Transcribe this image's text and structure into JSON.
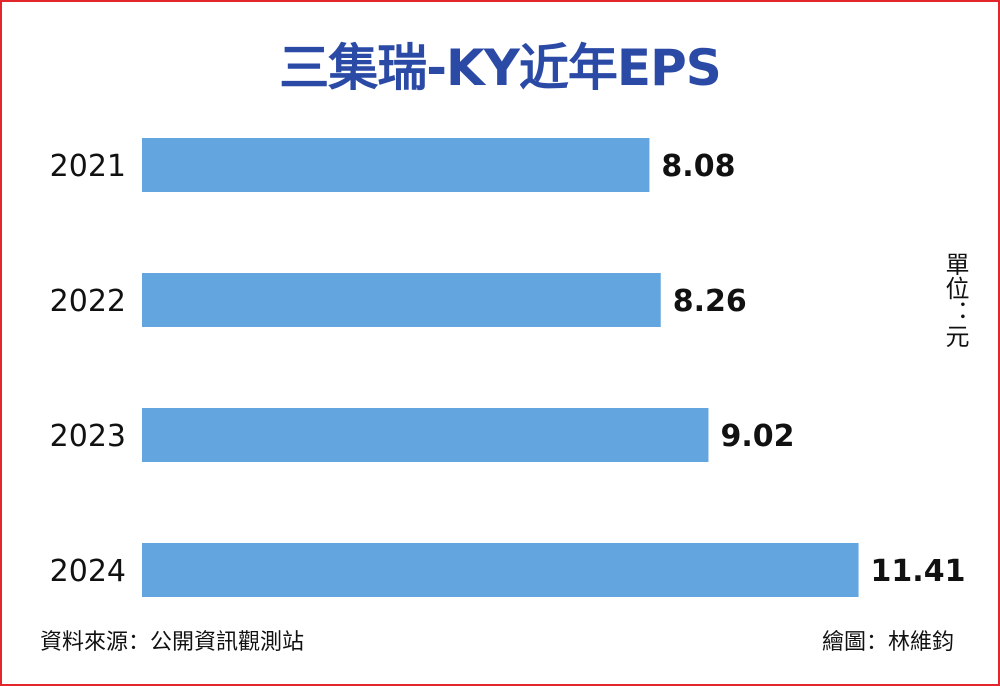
{
  "title": "三集瑞-KY近年EPS",
  "unit": "單位：元",
  "source": "資料來源：公開資訊觀測站",
  "credit": "繪圖：林維鈞",
  "colors": {
    "bar": "#63a5de",
    "title": "#2b4aa6",
    "frame": "#e2262b"
  },
  "chart_data": {
    "type": "bar",
    "orientation": "horizontal",
    "title": "三集瑞-KY近年EPS",
    "categories": [
      "2021",
      "2022",
      "2023",
      "2024"
    ],
    "values": [
      8.08,
      8.26,
      9.02,
      11.41
    ],
    "value_labels": [
      "8.08",
      "8.26",
      "9.02",
      "11.41"
    ],
    "xlabel": "",
    "ylabel": "",
    "unit": "單位：元",
    "grid": false,
    "legend": "none"
  }
}
